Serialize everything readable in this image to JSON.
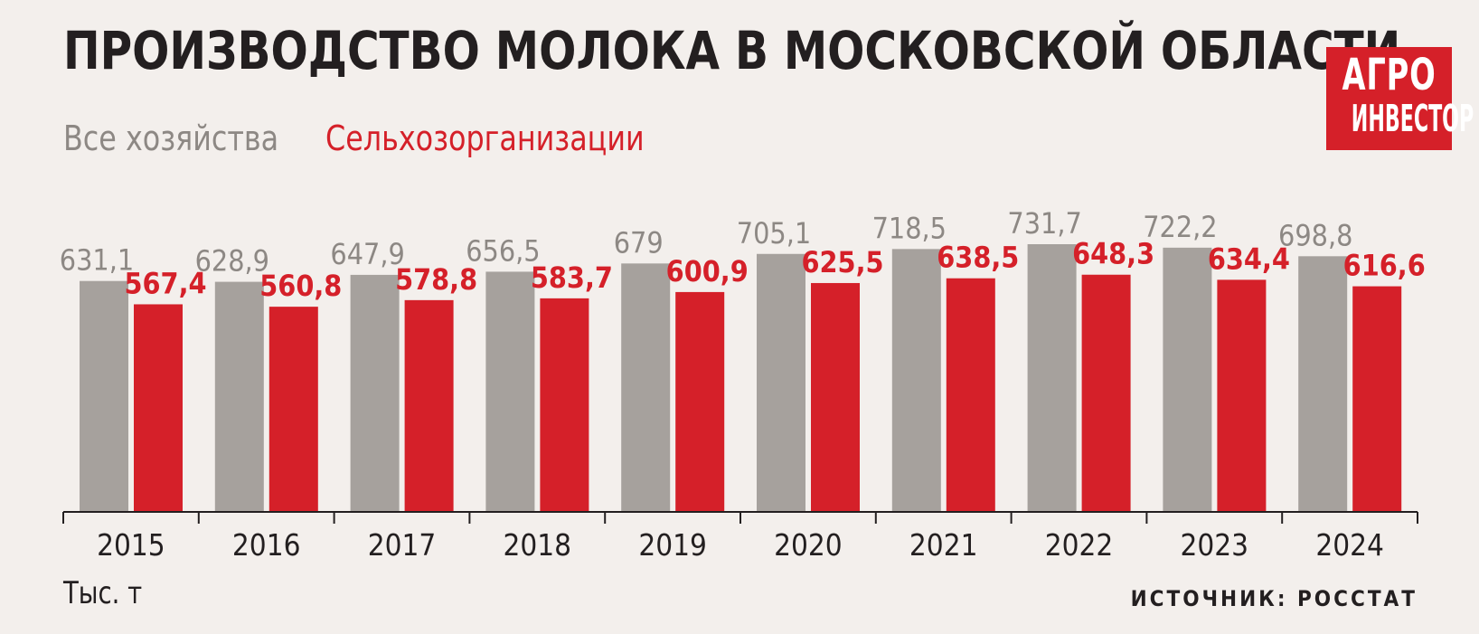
{
  "title": "ПРОИЗВОДСТВО МОЛОКА В МОСКОВСКОЙ ОБЛАСТИ",
  "logo": {
    "line1": "АГРО",
    "line2": "ИНВЕСТОР"
  },
  "unit_label": "Тыс. т",
  "source": "ИСТОЧНИК: РОССТАТ",
  "colors": {
    "all": "#a6a19d",
    "all_label": "#8d8884",
    "agro": "#d52029",
    "background": "#f3efec"
  },
  "chart_data": {
    "type": "bar",
    "title": "ПРОИЗВОДСТВО МОЛОКА В МОСКОВСКОЙ ОБЛАСТИ",
    "ylabel": "Тыс. т",
    "ylim": [
      0,
      731.7
    ],
    "grid": false,
    "legend_placement": "top-left",
    "categories": [
      "2015",
      "2016",
      "2017",
      "2018",
      "2019",
      "2020",
      "2021",
      "2022",
      "2023",
      "2024"
    ],
    "series": [
      {
        "name": "Все хозяйства",
        "color": "#a6a19d",
        "values": [
          631.1,
          628.9,
          647.9,
          656.5,
          679,
          705.1,
          718.5,
          731.7,
          722.2,
          698.8
        ],
        "labels": [
          "631,1",
          "628,9",
          "647,9",
          "656,5",
          "679",
          "705,1",
          "718,5",
          "731,7",
          "722,2",
          "698,8"
        ]
      },
      {
        "name": "Сельхозорганизации",
        "color": "#d52029",
        "values": [
          567.4,
          560.8,
          578.8,
          583.7,
          600.9,
          625.5,
          638.5,
          648.3,
          634.4,
          616.6
        ],
        "labels": [
          "567,4",
          "560,8",
          "578,8",
          "583,7",
          "600,9",
          "625,5",
          "638,5",
          "648,3",
          "634,4",
          "616,6"
        ]
      }
    ]
  }
}
